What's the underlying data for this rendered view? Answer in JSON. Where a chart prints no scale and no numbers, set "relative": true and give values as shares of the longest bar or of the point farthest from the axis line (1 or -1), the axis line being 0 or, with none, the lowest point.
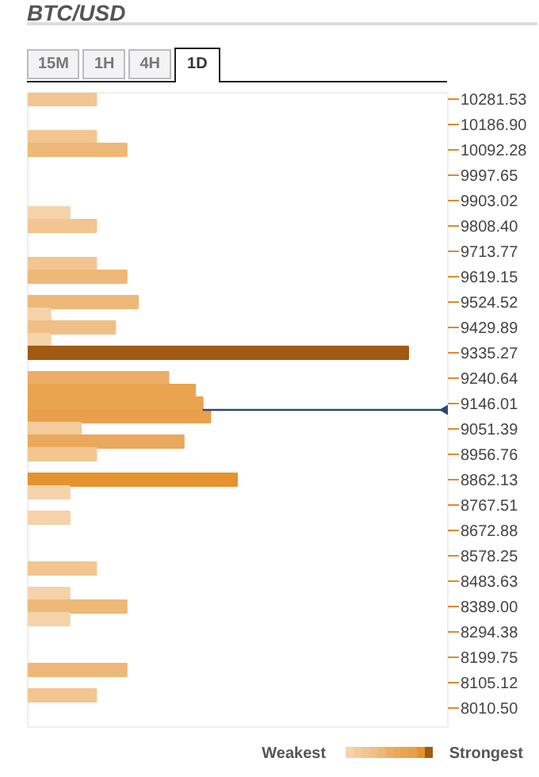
{
  "chart_data": {
    "type": "bar",
    "orientation": "horizontal",
    "relative": true,
    "title": "BTC/USD",
    "categories": [
      "10281.53",
      null,
      "10186.90",
      null,
      "10092.28",
      null,
      "9997.65",
      null,
      "9903.02",
      null,
      "9808.40",
      null,
      "9713.77",
      null,
      "9619.15",
      null,
      "9524.52",
      null,
      "9429.89",
      null,
      "9335.27",
      null,
      "9240.64",
      null,
      "9146.01",
      null,
      "9051.39",
      null,
      "8956.76",
      null,
      "8862.13",
      null,
      "8767.51",
      null,
      "8672.88",
      null,
      "8578.25",
      null,
      "8483.63",
      null,
      "8389.00",
      null,
      "8294.38",
      null,
      "8199.75",
      null,
      "8105.12",
      null,
      "8010.50",
      null
    ],
    "values": [
      0.18,
      null,
      null,
      0.18,
      0.26,
      null,
      null,
      null,
      null,
      0.11,
      0.18,
      null,
      null,
      0.18,
      0.26,
      null,
      0.29,
      0.06,
      0.23,
      0.06,
      1.0,
      null,
      0.37,
      0.44,
      0.46,
      0.48,
      0.14,
      0.41,
      0.18,
      null,
      0.55,
      0.11,
      null,
      0.11,
      null,
      null,
      null,
      0.18,
      null,
      0.11,
      0.26,
      0.11,
      null,
      null,
      null,
      0.26,
      null,
      0.18,
      null,
      null
    ],
    "colors": [
      "#f2c591",
      null,
      null,
      "#f2c591",
      "#eeb878",
      null,
      null,
      null,
      null,
      "#f6d2aa",
      "#f2c591",
      null,
      null,
      "#f2c591",
      "#eeb878",
      null,
      "#eeb878",
      "#f6d2aa",
      "#f0bf87",
      "#f6d2aa",
      "#a05a12",
      null,
      "#ecae67",
      "#e9a450",
      "#e9a450",
      "#e8a04a",
      "#f4cb9c",
      "#eba85c",
      "#f2c591",
      null,
      "#e6922e",
      "#f6d2aa",
      null,
      "#f6d2aa",
      null,
      null,
      null,
      "#f2c591",
      null,
      "#f6d2aa",
      "#eeb878",
      "#f6d2aa",
      null,
      null,
      null,
      "#eeb878",
      null,
      "#f2c591",
      null,
      null
    ],
    "ref_lines": [
      {
        "axis": "y",
        "value": "9146.01",
        "color": "#2c4a6e"
      }
    ],
    "annotations": [
      "15M",
      "1H",
      "4H",
      "1D",
      "Weakest",
      "Strongest"
    ]
  }
}
